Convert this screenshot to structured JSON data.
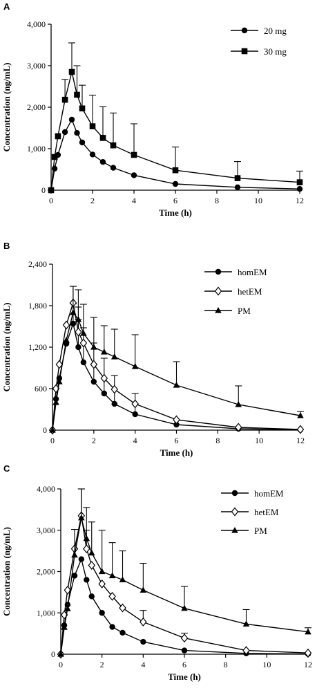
{
  "chart_data": [
    {
      "type": "line",
      "panel_label": "A",
      "xlabel": "Time (h)",
      "ylabel": "Concentration (ng/mL)",
      "xlim": [
        0,
        12
      ],
      "ylim": [
        0,
        4000
      ],
      "xticks": [
        "0",
        "2",
        "4",
        "6",
        "8",
        "10",
        "12"
      ],
      "yticks": [
        "0",
        "1,000",
        "2,000",
        "3,000",
        "4,000"
      ],
      "legend_position": "top-right",
      "grid": false,
      "x": [
        0,
        0.17,
        0.33,
        0.67,
        1,
        1.25,
        1.5,
        2,
        2.5,
        3,
        4,
        6,
        9,
        12
      ],
      "series": [
        {
          "name": "20 mg",
          "marker": "circle",
          "values": [
            0,
            520,
            850,
            1400,
            1700,
            1380,
            1150,
            860,
            680,
            540,
            360,
            150,
            70,
            30
          ],
          "err": [
            0,
            0,
            0,
            0,
            0,
            0,
            0,
            0,
            0,
            0,
            0,
            0,
            0,
            0
          ]
        },
        {
          "name": "30 mg",
          "marker": "square",
          "values": [
            0,
            800,
            1300,
            2180,
            2850,
            2300,
            1970,
            1540,
            1260,
            1080,
            850,
            480,
            290,
            190
          ],
          "err": [
            0,
            0,
            0,
            490,
            700,
            700,
            560,
            750,
            750,
            780,
            750,
            560,
            400,
            270
          ]
        }
      ]
    },
    {
      "type": "line",
      "panel_label": "B",
      "xlabel": "Time (h)",
      "ylabel": "Concentration (ng/mL)",
      "xlim": [
        0,
        12
      ],
      "ylim": [
        0,
        2400
      ],
      "xticks": [
        "0",
        "2",
        "4",
        "6",
        "8",
        "10",
        "12"
      ],
      "yticks": [
        "0",
        "600",
        "1,200",
        "1,800",
        "2,400"
      ],
      "legend_position": "top-right",
      "grid": false,
      "x": [
        0,
        0.17,
        0.33,
        0.67,
        1,
        1.25,
        1.5,
        2,
        2.5,
        3,
        4,
        6,
        9,
        12
      ],
      "series": [
        {
          "name": "homEM",
          "marker": "circle",
          "values": [
            0,
            450,
            750,
            1250,
            1540,
            1200,
            980,
            700,
            530,
            380,
            230,
            80,
            20,
            5
          ],
          "err": [
            0,
            0,
            0,
            0,
            290,
            400,
            500,
            560,
            510,
            410,
            300,
            0,
            0,
            0
          ]
        },
        {
          "name": "hetEM",
          "marker": "diamond",
          "values": [
            0,
            600,
            950,
            1520,
            1840,
            1420,
            1260,
            950,
            750,
            590,
            380,
            150,
            40,
            10
          ],
          "err": [
            0,
            0,
            0,
            0,
            240,
            360,
            0,
            0,
            0,
            0,
            0,
            0,
            0,
            0
          ]
        },
        {
          "name": "PM",
          "marker": "triangle",
          "values": [
            0,
            400,
            700,
            1300,
            1700,
            1600,
            1400,
            1200,
            1130,
            1060,
            920,
            650,
            370,
            210
          ],
          "err": [
            0,
            0,
            0,
            0,
            380,
            430,
            420,
            430,
            380,
            400,
            460,
            340,
            270,
            60
          ]
        }
      ]
    },
    {
      "type": "line",
      "panel_label": "C",
      "xlabel": "Time (h)",
      "ylabel": "Concentration (ng/mL)",
      "xlim": [
        0,
        12
      ],
      "ylim": [
        0,
        4000
      ],
      "xticks": [
        "0",
        "2",
        "4",
        "6",
        "8",
        "10",
        "12"
      ],
      "yticks": [
        "0",
        "1,000",
        "2,000",
        "3,000",
        "4,000"
      ],
      "legend_position": "top-right",
      "grid": false,
      "x": [
        0,
        0.17,
        0.33,
        0.67,
        1,
        1.25,
        1.5,
        2,
        2.5,
        3,
        4,
        6,
        9,
        12
      ],
      "series": [
        {
          "name": "homEM",
          "marker": "circle",
          "values": [
            0,
            700,
            1200,
            1900,
            2300,
            1800,
            1400,
            1000,
            660,
            520,
            300,
            90,
            20,
            5
          ],
          "err": [
            0,
            0,
            0,
            0,
            0,
            0,
            0,
            0,
            0,
            0,
            0,
            0,
            0,
            0
          ]
        },
        {
          "name": "hetEM",
          "marker": "diamond",
          "values": [
            0,
            950,
            1550,
            2550,
            3350,
            2550,
            2150,
            1700,
            1400,
            1120,
            780,
            390,
            90,
            30
          ],
          "err": [
            0,
            0,
            0,
            0,
            650,
            450,
            0,
            0,
            0,
            0,
            280,
            120,
            0,
            0
          ]
        },
        {
          "name": "PM",
          "marker": "triangle",
          "values": [
            0,
            650,
            1100,
            2400,
            3300,
            2800,
            2450,
            2000,
            1900,
            1800,
            1550,
            1110,
            730,
            540
          ],
          "err": [
            0,
            0,
            0,
            620,
            700,
            750,
            750,
            1000,
            800,
            700,
            650,
            530,
            350,
            100
          ]
        }
      ]
    }
  ]
}
